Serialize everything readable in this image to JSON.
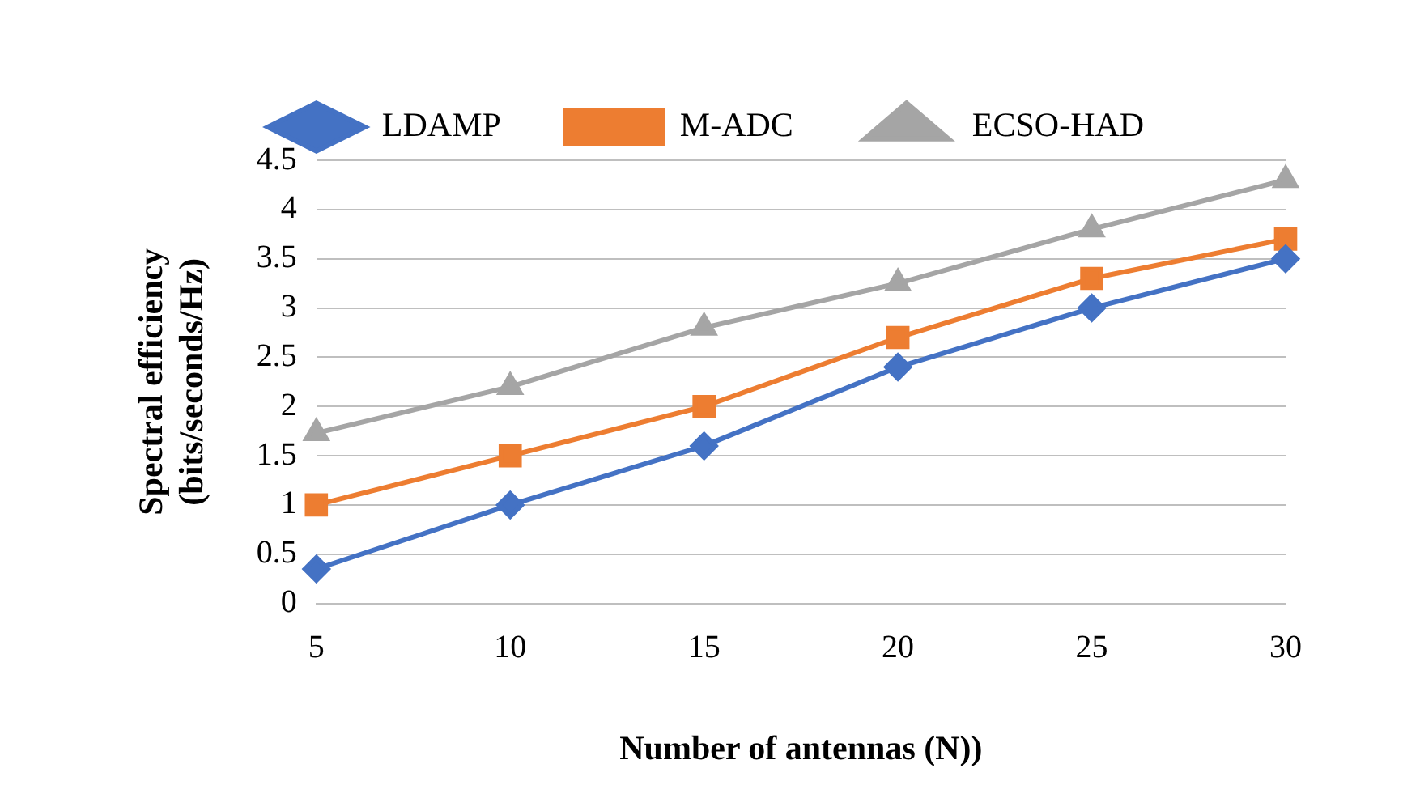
{
  "chart_data": {
    "type": "line",
    "xlabel": "Number of antennas (N))",
    "ylabel": "Spectral efficiency (bits/seconds/Hz)",
    "categories": [
      "5",
      "10",
      "15",
      "20",
      "25",
      "30"
    ],
    "series": [
      {
        "name": "LDAMP",
        "color": "#4472c4",
        "marker": "diamond",
        "values": [
          0.35,
          1,
          1.6,
          2.4,
          3,
          3.5
        ]
      },
      {
        "name": "M-ADC",
        "color": "#ed7d31",
        "marker": "square",
        "values": [
          1,
          1.5,
          2,
          2.7,
          3.3,
          3.7
        ]
      },
      {
        "name": "ECSO-HAD",
        "color": "#a5a5a5",
        "marker": "triangle",
        "values": [
          1.73,
          2.2,
          2.8,
          3.25,
          3.8,
          4.3
        ]
      }
    ],
    "ylim": [
      0,
      4.5
    ],
    "yticks": [
      0,
      0.5,
      1,
      1.5,
      2,
      2.5,
      3,
      3.5,
      4,
      4.5
    ],
    "grid": "y",
    "legend": "top"
  }
}
